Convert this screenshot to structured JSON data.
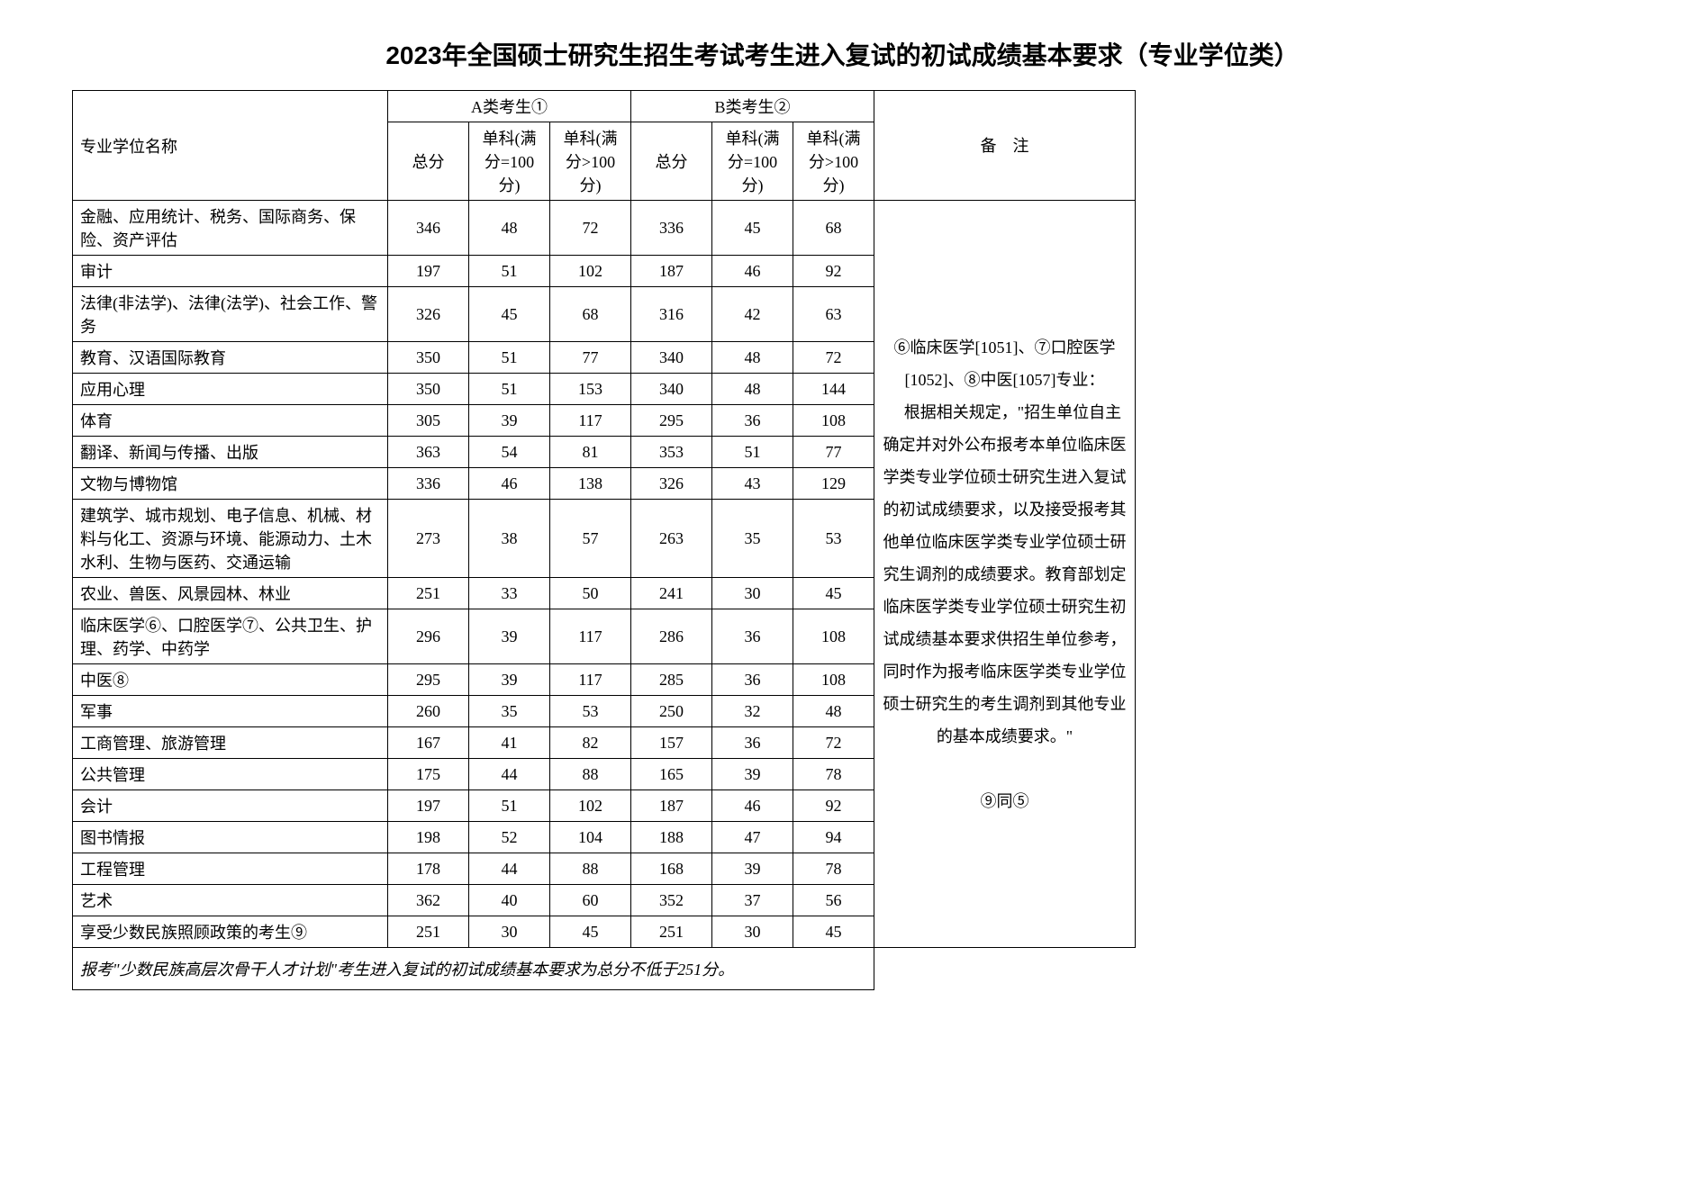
{
  "title": "2023年全国硕士研究生招生考试考生进入复试的初试成绩基本要求（专业学位类）",
  "headers": {
    "name": "专业学位名称",
    "groupA": "A类考生①",
    "groupB": "B类考生②",
    "notes": "备　注",
    "total": "总分",
    "sub100": "单科(满分=100分)",
    "subOver100": "单科(满分>100分)"
  },
  "rows": [
    {
      "name": "金融、应用统计、税务、国际商务、保险、资产评估",
      "a_total": "346",
      "a_s1": "48",
      "a_s2": "72",
      "b_total": "336",
      "b_s1": "45",
      "b_s2": "68"
    },
    {
      "name": "审计",
      "a_total": "197",
      "a_s1": "51",
      "a_s2": "102",
      "b_total": "187",
      "b_s1": "46",
      "b_s2": "92"
    },
    {
      "name": "法律(非法学)、法律(法学)、社会工作、警务",
      "a_total": "326",
      "a_s1": "45",
      "a_s2": "68",
      "b_total": "316",
      "b_s1": "42",
      "b_s2": "63"
    },
    {
      "name": "教育、汉语国际教育",
      "a_total": "350",
      "a_s1": "51",
      "a_s2": "77",
      "b_total": "340",
      "b_s1": "48",
      "b_s2": "72"
    },
    {
      "name": "应用心理",
      "a_total": "350",
      "a_s1": "51",
      "a_s2": "153",
      "b_total": "340",
      "b_s1": "48",
      "b_s2": "144"
    },
    {
      "name": "体育",
      "a_total": "305",
      "a_s1": "39",
      "a_s2": "117",
      "b_total": "295",
      "b_s1": "36",
      "b_s2": "108"
    },
    {
      "name": "翻译、新闻与传播、出版",
      "a_total": "363",
      "a_s1": "54",
      "a_s2": "81",
      "b_total": "353",
      "b_s1": "51",
      "b_s2": "77"
    },
    {
      "name": "文物与博物馆",
      "a_total": "336",
      "a_s1": "46",
      "a_s2": "138",
      "b_total": "326",
      "b_s1": "43",
      "b_s2": "129"
    },
    {
      "name": "建筑学、城市规划、电子信息、机械、材料与化工、资源与环境、能源动力、土木水利、生物与医药、交通运输",
      "a_total": "273",
      "a_s1": "38",
      "a_s2": "57",
      "b_total": "263",
      "b_s1": "35",
      "b_s2": "53"
    },
    {
      "name": "农业、兽医、风景园林、林业",
      "a_total": "251",
      "a_s1": "33",
      "a_s2": "50",
      "b_total": "241",
      "b_s1": "30",
      "b_s2": "45"
    },
    {
      "name": "临床医学⑥、口腔医学⑦、公共卫生、护理、药学、中药学",
      "a_total": "296",
      "a_s1": "39",
      "a_s2": "117",
      "b_total": "286",
      "b_s1": "36",
      "b_s2": "108"
    },
    {
      "name": "中医⑧",
      "a_total": "295",
      "a_s1": "39",
      "a_s2": "117",
      "b_total": "285",
      "b_s1": "36",
      "b_s2": "108"
    },
    {
      "name": "军事",
      "a_total": "260",
      "a_s1": "35",
      "a_s2": "53",
      "b_total": "250",
      "b_s1": "32",
      "b_s2": "48"
    },
    {
      "name": "工商管理、旅游管理",
      "a_total": "167",
      "a_s1": "41",
      "a_s2": "82",
      "b_total": "157",
      "b_s1": "36",
      "b_s2": "72"
    },
    {
      "name": "公共管理",
      "a_total": "175",
      "a_s1": "44",
      "a_s2": "88",
      "b_total": "165",
      "b_s1": "39",
      "b_s2": "78"
    },
    {
      "name": "会计",
      "a_total": "197",
      "a_s1": "51",
      "a_s2": "102",
      "b_total": "187",
      "b_s1": "46",
      "b_s2": "92"
    },
    {
      "name": "图书情报",
      "a_total": "198",
      "a_s1": "52",
      "a_s2": "104",
      "b_total": "188",
      "b_s1": "47",
      "b_s2": "94"
    },
    {
      "name": "工程管理",
      "a_total": "178",
      "a_s1": "44",
      "a_s2": "88",
      "b_total": "168",
      "b_s1": "39",
      "b_s2": "78"
    },
    {
      "name": "艺术",
      "a_total": "362",
      "a_s1": "40",
      "a_s2": "60",
      "b_total": "352",
      "b_s1": "37",
      "b_s2": "56"
    },
    {
      "name": "享受少数民族照顾政策的考生⑨",
      "a_total": "251",
      "a_s1": "30",
      "a_s2": "45",
      "b_total": "251",
      "b_s1": "30",
      "b_s2": "45"
    }
  ],
  "footer": "报考\"少数民族高层次骨干人才计划\"考生进入复试的初试成绩基本要求为总分不低于251分。",
  "notes_text": "⑥临床医学[1051]、⑦口腔医学[1052]、⑧中医[1057]专业：\n　根据相关规定，\"招生单位自主确定并对外公布报考本单位临床医学类专业学位硕士研究生进入复试的初试成绩要求，以及接受报考其他单位临床医学类专业学位硕士研究生调剂的成绩要求。教育部划定临床医学类专业学位硕士研究生初试成绩基本要求供招生单位参考，同时作为报考临床医学类专业学位硕士研究生的考生调剂到其他专业的基本成绩要求。\"\n\n⑨同⑤",
  "styling": {
    "background_color": "#ffffff",
    "border_color": "#000000",
    "title_fontsize": 28,
    "cell_fontsize": 18,
    "notes_fontsize": 15,
    "font_family_body": "SimSun",
    "font_family_title": "SimHei"
  }
}
